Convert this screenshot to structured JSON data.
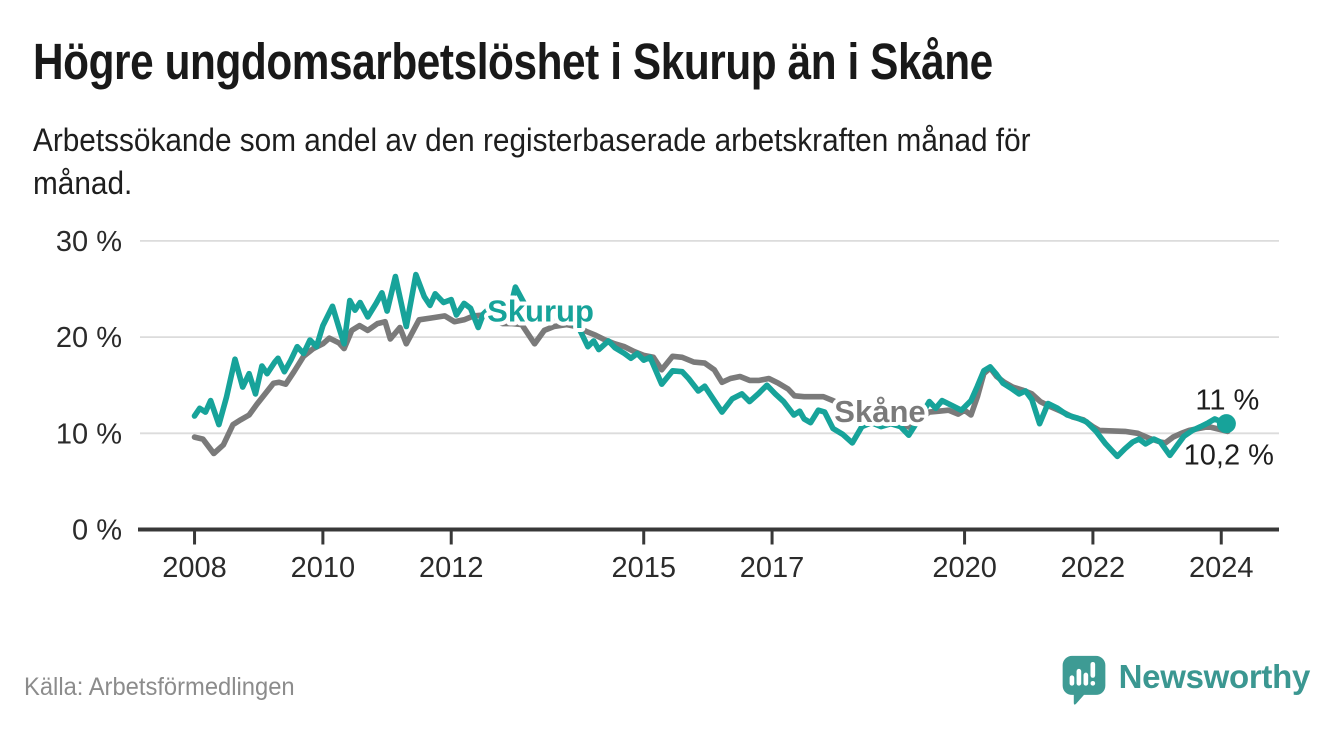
{
  "header": {
    "title": "Högre ungdomsarbetslöshet i Skurup än i Skåne",
    "subtitle_line1": "Arbetssökande som andel av den registerbaserade arbetskraften månad för",
    "subtitle_line2": "månad."
  },
  "chart_data": {
    "type": "line",
    "title": "Högre ungdomsarbetslöshet i Skurup än i Skåne",
    "unit": "%",
    "xlabel": "",
    "ylabel": "",
    "grid": true,
    "legend_position": "inline-labels",
    "xlim": [
      2007.15,
      2024.9
    ],
    "ylim": [
      0,
      30
    ],
    "y_ticks": [
      {
        "value": 0,
        "label": "0 %"
      },
      {
        "value": 10,
        "label": "10 %"
      },
      {
        "value": 20,
        "label": "20 %"
      },
      {
        "value": 30,
        "label": "30 %"
      }
    ],
    "x_ticks": [
      {
        "value": 2008,
        "label": "2008"
      },
      {
        "value": 2010,
        "label": "2010"
      },
      {
        "value": 2012,
        "label": "2012"
      },
      {
        "value": 2015,
        "label": "2015"
      },
      {
        "value": 2017,
        "label": "2017"
      },
      {
        "value": 2020,
        "label": "2020"
      },
      {
        "value": 2022,
        "label": "2022"
      },
      {
        "value": 2024,
        "label": "2024"
      }
    ],
    "series": [
      {
        "name": "Skåne",
        "color": "#7a7a7a",
        "end_label": "10,2 %",
        "end_dot": false,
        "inline_label": {
          "text": "Skåne",
          "x": 2017.97,
          "y": 11.2
        },
        "points": [
          [
            2008.0,
            9.6
          ],
          [
            2008.13,
            9.4
          ],
          [
            2008.3,
            7.9
          ],
          [
            2008.45,
            8.8
          ],
          [
            2008.6,
            10.9
          ],
          [
            2008.72,
            11.4
          ],
          [
            2008.85,
            11.9
          ],
          [
            2008.97,
            13.0
          ],
          [
            2009.1,
            14.1
          ],
          [
            2009.23,
            15.2
          ],
          [
            2009.32,
            15.3
          ],
          [
            2009.42,
            15.1
          ],
          [
            2009.55,
            16.4
          ],
          [
            2009.7,
            18.0
          ],
          [
            2009.85,
            18.8
          ],
          [
            2010.0,
            19.3
          ],
          [
            2010.1,
            19.9
          ],
          [
            2010.25,
            19.4
          ],
          [
            2010.33,
            18.8
          ],
          [
            2010.45,
            20.7
          ],
          [
            2010.57,
            21.2
          ],
          [
            2010.7,
            20.7
          ],
          [
            2010.85,
            21.4
          ],
          [
            2010.97,
            21.6
          ],
          [
            2011.05,
            19.8
          ],
          [
            2011.2,
            21.0
          ],
          [
            2011.3,
            19.3
          ],
          [
            2011.5,
            21.8
          ],
          [
            2011.7,
            22.0
          ],
          [
            2011.9,
            22.2
          ],
          [
            2012.05,
            21.6
          ],
          [
            2012.2,
            21.8
          ],
          [
            2012.35,
            22.2
          ],
          [
            2012.5,
            22.3
          ],
          [
            2012.65,
            21.7
          ],
          [
            2012.8,
            21.4
          ],
          [
            2012.95,
            21.4
          ],
          [
            2013.1,
            21.3
          ],
          [
            2013.3,
            19.3
          ],
          [
            2013.45,
            20.7
          ],
          [
            2013.6,
            21.1
          ],
          [
            2013.8,
            21.3
          ],
          [
            2013.95,
            21.1
          ],
          [
            2014.1,
            20.6
          ],
          [
            2014.25,
            20.2
          ],
          [
            2014.4,
            19.7
          ],
          [
            2014.55,
            19.3
          ],
          [
            2014.7,
            19.0
          ],
          [
            2014.85,
            18.5
          ],
          [
            2015.0,
            18.1
          ],
          [
            2015.15,
            17.9
          ],
          [
            2015.28,
            16.6
          ],
          [
            2015.45,
            18.0
          ],
          [
            2015.6,
            17.9
          ],
          [
            2015.78,
            17.4
          ],
          [
            2015.95,
            17.3
          ],
          [
            2016.1,
            16.6
          ],
          [
            2016.22,
            15.3
          ],
          [
            2016.35,
            15.7
          ],
          [
            2016.5,
            15.9
          ],
          [
            2016.65,
            15.5
          ],
          [
            2016.8,
            15.5
          ],
          [
            2016.95,
            15.7
          ],
          [
            2017.1,
            15.2
          ],
          [
            2017.25,
            14.6
          ],
          [
            2017.35,
            13.9
          ],
          [
            2017.5,
            13.8
          ],
          [
            2017.65,
            13.8
          ],
          [
            2017.8,
            13.8
          ],
          [
            2017.95,
            13.4
          ],
          [
            2018.1,
            12.9
          ],
          [
            2018.3,
            12.5
          ],
          [
            2018.5,
            12.7
          ],
          [
            2018.7,
            12.3
          ],
          [
            2018.9,
            11.5
          ],
          [
            2019.05,
            10.9
          ],
          [
            2019.15,
            10.6
          ],
          [
            2019.3,
            11.5
          ],
          [
            2019.45,
            12.2
          ],
          [
            2019.6,
            12.3
          ],
          [
            2019.75,
            12.4
          ],
          [
            2019.9,
            12.0
          ],
          [
            2020.0,
            12.4
          ],
          [
            2020.1,
            11.9
          ],
          [
            2020.2,
            13.8
          ],
          [
            2020.3,
            16.2
          ],
          [
            2020.4,
            16.8
          ],
          [
            2020.5,
            15.9
          ],
          [
            2020.62,
            15.3
          ],
          [
            2020.75,
            14.8
          ],
          [
            2020.9,
            14.5
          ],
          [
            2021.05,
            14.1
          ],
          [
            2021.18,
            13.3
          ],
          [
            2021.33,
            12.8
          ],
          [
            2021.5,
            12.3
          ],
          [
            2021.68,
            11.7
          ],
          [
            2021.85,
            11.4
          ],
          [
            2022.0,
            10.7
          ],
          [
            2022.1,
            10.3
          ],
          [
            2022.3,
            10.25
          ],
          [
            2022.5,
            10.2
          ],
          [
            2022.7,
            10.0
          ],
          [
            2022.87,
            9.5
          ],
          [
            2023.05,
            9.1
          ],
          [
            2023.13,
            9.0
          ],
          [
            2023.25,
            9.6
          ],
          [
            2023.38,
            10.0
          ],
          [
            2023.5,
            10.3
          ],
          [
            2023.65,
            10.5
          ],
          [
            2023.8,
            10.7
          ],
          [
            2023.92,
            10.5
          ],
          [
            2024.1,
            10.2
          ]
        ]
      },
      {
        "name": "Skurup",
        "color": "#17a39a",
        "end_label": "11 %",
        "end_dot": true,
        "inline_label": {
          "text": "Skurup",
          "x": 2012.56,
          "y": 21.6
        },
        "points": [
          [
            2008.0,
            11.8
          ],
          [
            2008.08,
            12.6
          ],
          [
            2008.17,
            12.2
          ],
          [
            2008.25,
            13.4
          ],
          [
            2008.38,
            10.9
          ],
          [
            2008.5,
            13.8
          ],
          [
            2008.63,
            17.7
          ],
          [
            2008.75,
            14.8
          ],
          [
            2008.85,
            16.2
          ],
          [
            2008.95,
            14.1
          ],
          [
            2009.05,
            17.0
          ],
          [
            2009.13,
            16.2
          ],
          [
            2009.25,
            17.4
          ],
          [
            2009.3,
            17.8
          ],
          [
            2009.4,
            16.4
          ],
          [
            2009.5,
            17.6
          ],
          [
            2009.6,
            19.0
          ],
          [
            2009.7,
            18.3
          ],
          [
            2009.8,
            19.7
          ],
          [
            2009.9,
            19.0
          ],
          [
            2010.0,
            21.2
          ],
          [
            2010.15,
            23.2
          ],
          [
            2010.25,
            21.0
          ],
          [
            2010.33,
            19.3
          ],
          [
            2010.42,
            23.8
          ],
          [
            2010.5,
            22.8
          ],
          [
            2010.58,
            23.6
          ],
          [
            2010.7,
            22.1
          ],
          [
            2010.83,
            23.5
          ],
          [
            2010.92,
            24.6
          ],
          [
            2011.0,
            22.7
          ],
          [
            2011.13,
            26.3
          ],
          [
            2011.3,
            21.1
          ],
          [
            2011.45,
            26.5
          ],
          [
            2011.58,
            24.2
          ],
          [
            2011.67,
            23.3
          ],
          [
            2011.75,
            24.5
          ],
          [
            2011.88,
            23.6
          ],
          [
            2012.0,
            23.9
          ],
          [
            2012.08,
            22.3
          ],
          [
            2012.2,
            23.5
          ],
          [
            2012.3,
            23.0
          ],
          [
            2012.42,
            21.0
          ],
          [
            2012.5,
            22.4
          ],
          [
            2012.58,
            22.9
          ],
          [
            2012.7,
            22.4
          ],
          [
            2012.8,
            21.8
          ],
          [
            2012.9,
            22.5
          ],
          [
            2013.0,
            25.2
          ],
          [
            2013.13,
            23.6
          ],
          [
            2013.25,
            21.9
          ],
          [
            2013.35,
            21.6
          ],
          [
            2013.5,
            21.8
          ],
          [
            2013.63,
            22.1
          ],
          [
            2013.77,
            22.2
          ],
          [
            2013.9,
            21.4
          ],
          [
            2014.0,
            20.8
          ],
          [
            2014.13,
            19.0
          ],
          [
            2014.22,
            19.6
          ],
          [
            2014.3,
            18.7
          ],
          [
            2014.45,
            19.6
          ],
          [
            2014.55,
            18.9
          ],
          [
            2014.7,
            18.3
          ],
          [
            2014.8,
            17.8
          ],
          [
            2014.9,
            18.3
          ],
          [
            2015.0,
            17.6
          ],
          [
            2015.1,
            17.9
          ],
          [
            2015.28,
            15.1
          ],
          [
            2015.45,
            16.5
          ],
          [
            2015.6,
            16.4
          ],
          [
            2015.7,
            15.7
          ],
          [
            2015.85,
            14.4
          ],
          [
            2015.95,
            14.9
          ],
          [
            2016.1,
            13.4
          ],
          [
            2016.22,
            12.2
          ],
          [
            2016.38,
            13.6
          ],
          [
            2016.53,
            14.1
          ],
          [
            2016.65,
            13.3
          ],
          [
            2016.8,
            14.2
          ],
          [
            2016.92,
            15.0
          ],
          [
            2017.05,
            14.1
          ],
          [
            2017.18,
            13.3
          ],
          [
            2017.34,
            11.9
          ],
          [
            2017.43,
            12.3
          ],
          [
            2017.5,
            11.5
          ],
          [
            2017.6,
            11.1
          ],
          [
            2017.72,
            12.4
          ],
          [
            2017.82,
            12.2
          ],
          [
            2017.95,
            10.5
          ],
          [
            2018.1,
            9.9
          ],
          [
            2018.25,
            9.0
          ],
          [
            2018.4,
            10.7
          ],
          [
            2018.55,
            11.1
          ],
          [
            2018.7,
            10.7
          ],
          [
            2018.85,
            11.0
          ],
          [
            2019.0,
            10.7
          ],
          [
            2019.13,
            9.8
          ],
          [
            2019.3,
            11.6
          ],
          [
            2019.45,
            13.3
          ],
          [
            2019.55,
            12.6
          ],
          [
            2019.65,
            13.4
          ],
          [
            2019.8,
            12.9
          ],
          [
            2019.95,
            12.4
          ],
          [
            2020.1,
            13.4
          ],
          [
            2020.2,
            14.9
          ],
          [
            2020.3,
            16.5
          ],
          [
            2020.4,
            16.9
          ],
          [
            2020.5,
            16.1
          ],
          [
            2020.6,
            15.2
          ],
          [
            2020.72,
            14.7
          ],
          [
            2020.85,
            14.1
          ],
          [
            2020.95,
            14.4
          ],
          [
            2021.05,
            13.5
          ],
          [
            2021.17,
            11.0
          ],
          [
            2021.3,
            13.1
          ],
          [
            2021.45,
            12.6
          ],
          [
            2021.6,
            11.9
          ],
          [
            2021.75,
            11.6
          ],
          [
            2021.9,
            11.2
          ],
          [
            2022.05,
            10.2
          ],
          [
            2022.2,
            8.9
          ],
          [
            2022.38,
            7.6
          ],
          [
            2022.5,
            8.4
          ],
          [
            2022.62,
            9.1
          ],
          [
            2022.72,
            9.4
          ],
          [
            2022.82,
            8.9
          ],
          [
            2022.95,
            9.4
          ],
          [
            2023.05,
            9.1
          ],
          [
            2023.2,
            7.7
          ],
          [
            2023.32,
            8.8
          ],
          [
            2023.42,
            9.7
          ],
          [
            2023.55,
            10.3
          ],
          [
            2023.68,
            10.7
          ],
          [
            2023.8,
            11.1
          ],
          [
            2023.9,
            11.5
          ],
          [
            2024.0,
            11.2
          ],
          [
            2024.08,
            11.0
          ]
        ]
      }
    ]
  },
  "footer": {
    "source": "Källa: Arbetsförmedlingen",
    "brand": "Newsworthy"
  },
  "colors": {
    "skurup_teal": "#17a39a",
    "skane_gray": "#7a7a7a",
    "axis": "#383838",
    "gridline": "#dcdcdc",
    "text_dark": "#1e1e1e",
    "brand_teal": "#3b9791"
  }
}
